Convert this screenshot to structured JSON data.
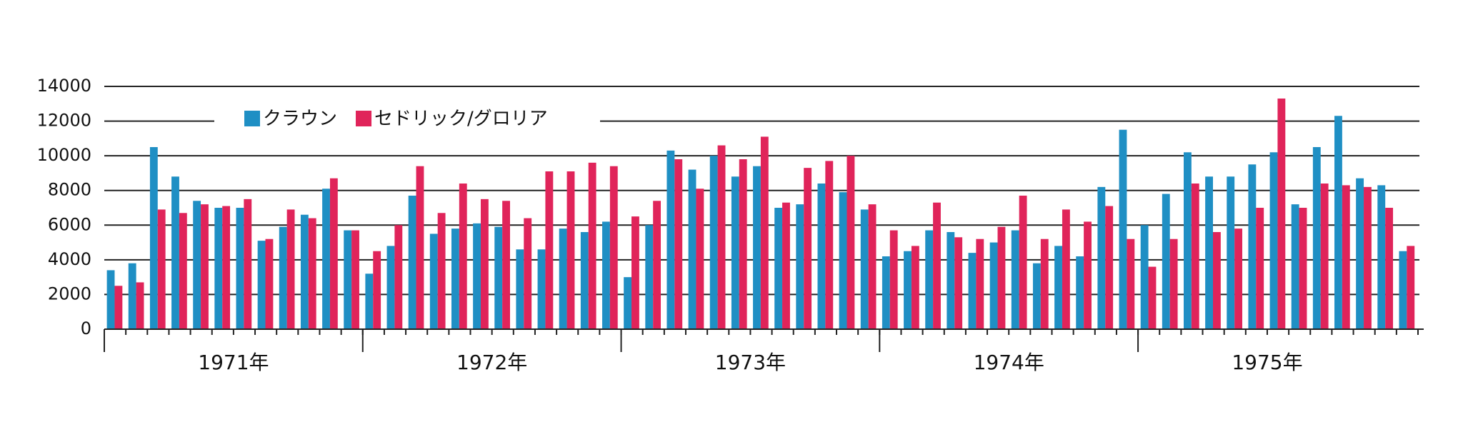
{
  "chart_data": {
    "type": "bar",
    "categories": [
      null,
      null,
      null,
      null,
      null,
      null,
      null,
      null,
      null,
      null,
      null,
      null,
      null,
      null,
      null,
      null,
      null,
      null,
      null,
      null,
      null,
      null,
      null,
      null,
      null,
      null,
      null,
      null,
      null,
      null,
      null,
      null,
      null,
      null,
      null,
      null,
      null,
      null,
      null,
      null,
      null,
      null,
      null,
      null,
      null,
      null,
      null,
      null,
      null,
      null,
      null,
      null,
      null,
      null,
      null,
      null,
      null,
      null,
      null,
      null,
      null
    ],
    "year_labels": [
      "1971年",
      "1972年",
      "1973年",
      "1974年",
      "1975年"
    ],
    "series": [
      {
        "name": "クラウン",
        "color": "#1f8fc4",
        "values": [
          3400,
          3800,
          10500,
          8800,
          7400,
          7000,
          7000,
          5100,
          5900,
          6600,
          8100,
          5700,
          3200,
          4800,
          7700,
          5500,
          5800,
          6100,
          5900,
          4600,
          4600,
          5800,
          5600,
          6200,
          3000,
          6000,
          10300,
          9200,
          10000,
          8800,
          9400,
          7000,
          7200,
          8400,
          7900,
          6900,
          4200,
          4500,
          5700,
          5600,
          4400,
          5000,
          5700,
          3800,
          4800,
          4200,
          8200,
          11500,
          6000,
          7800,
          10200,
          8800,
          8800,
          9500,
          10200,
          7200,
          10500,
          12300,
          8700,
          8300,
          4500
        ]
      },
      {
        "name": "セドリック/グロリア",
        "color": "#e0245a",
        "values": [
          2500,
          2700,
          6900,
          6700,
          7200,
          7100,
          7500,
          5200,
          6900,
          6400,
          8700,
          5700,
          4500,
          6000,
          9400,
          6700,
          8400,
          7500,
          7400,
          6400,
          9100,
          9100,
          9600,
          9400,
          6500,
          7400,
          9800,
          8100,
          10600,
          9800,
          11100,
          7300,
          9300,
          9700,
          10000,
          7200,
          5700,
          4800,
          7300,
          5300,
          5200,
          5900,
          7700,
          5200,
          6900,
          6200,
          7100,
          5200,
          3600,
          5200,
          8400,
          5600,
          5800,
          7000,
          13300,
          7000,
          8400,
          8300,
          8200,
          7000,
          4800
        ]
      }
    ],
    "ylim": [
      0,
      14000
    ],
    "yticks": [
      0,
      2000,
      4000,
      6000,
      8000,
      10000,
      12000,
      14000
    ],
    "grid": true,
    "legend": "top-left"
  }
}
